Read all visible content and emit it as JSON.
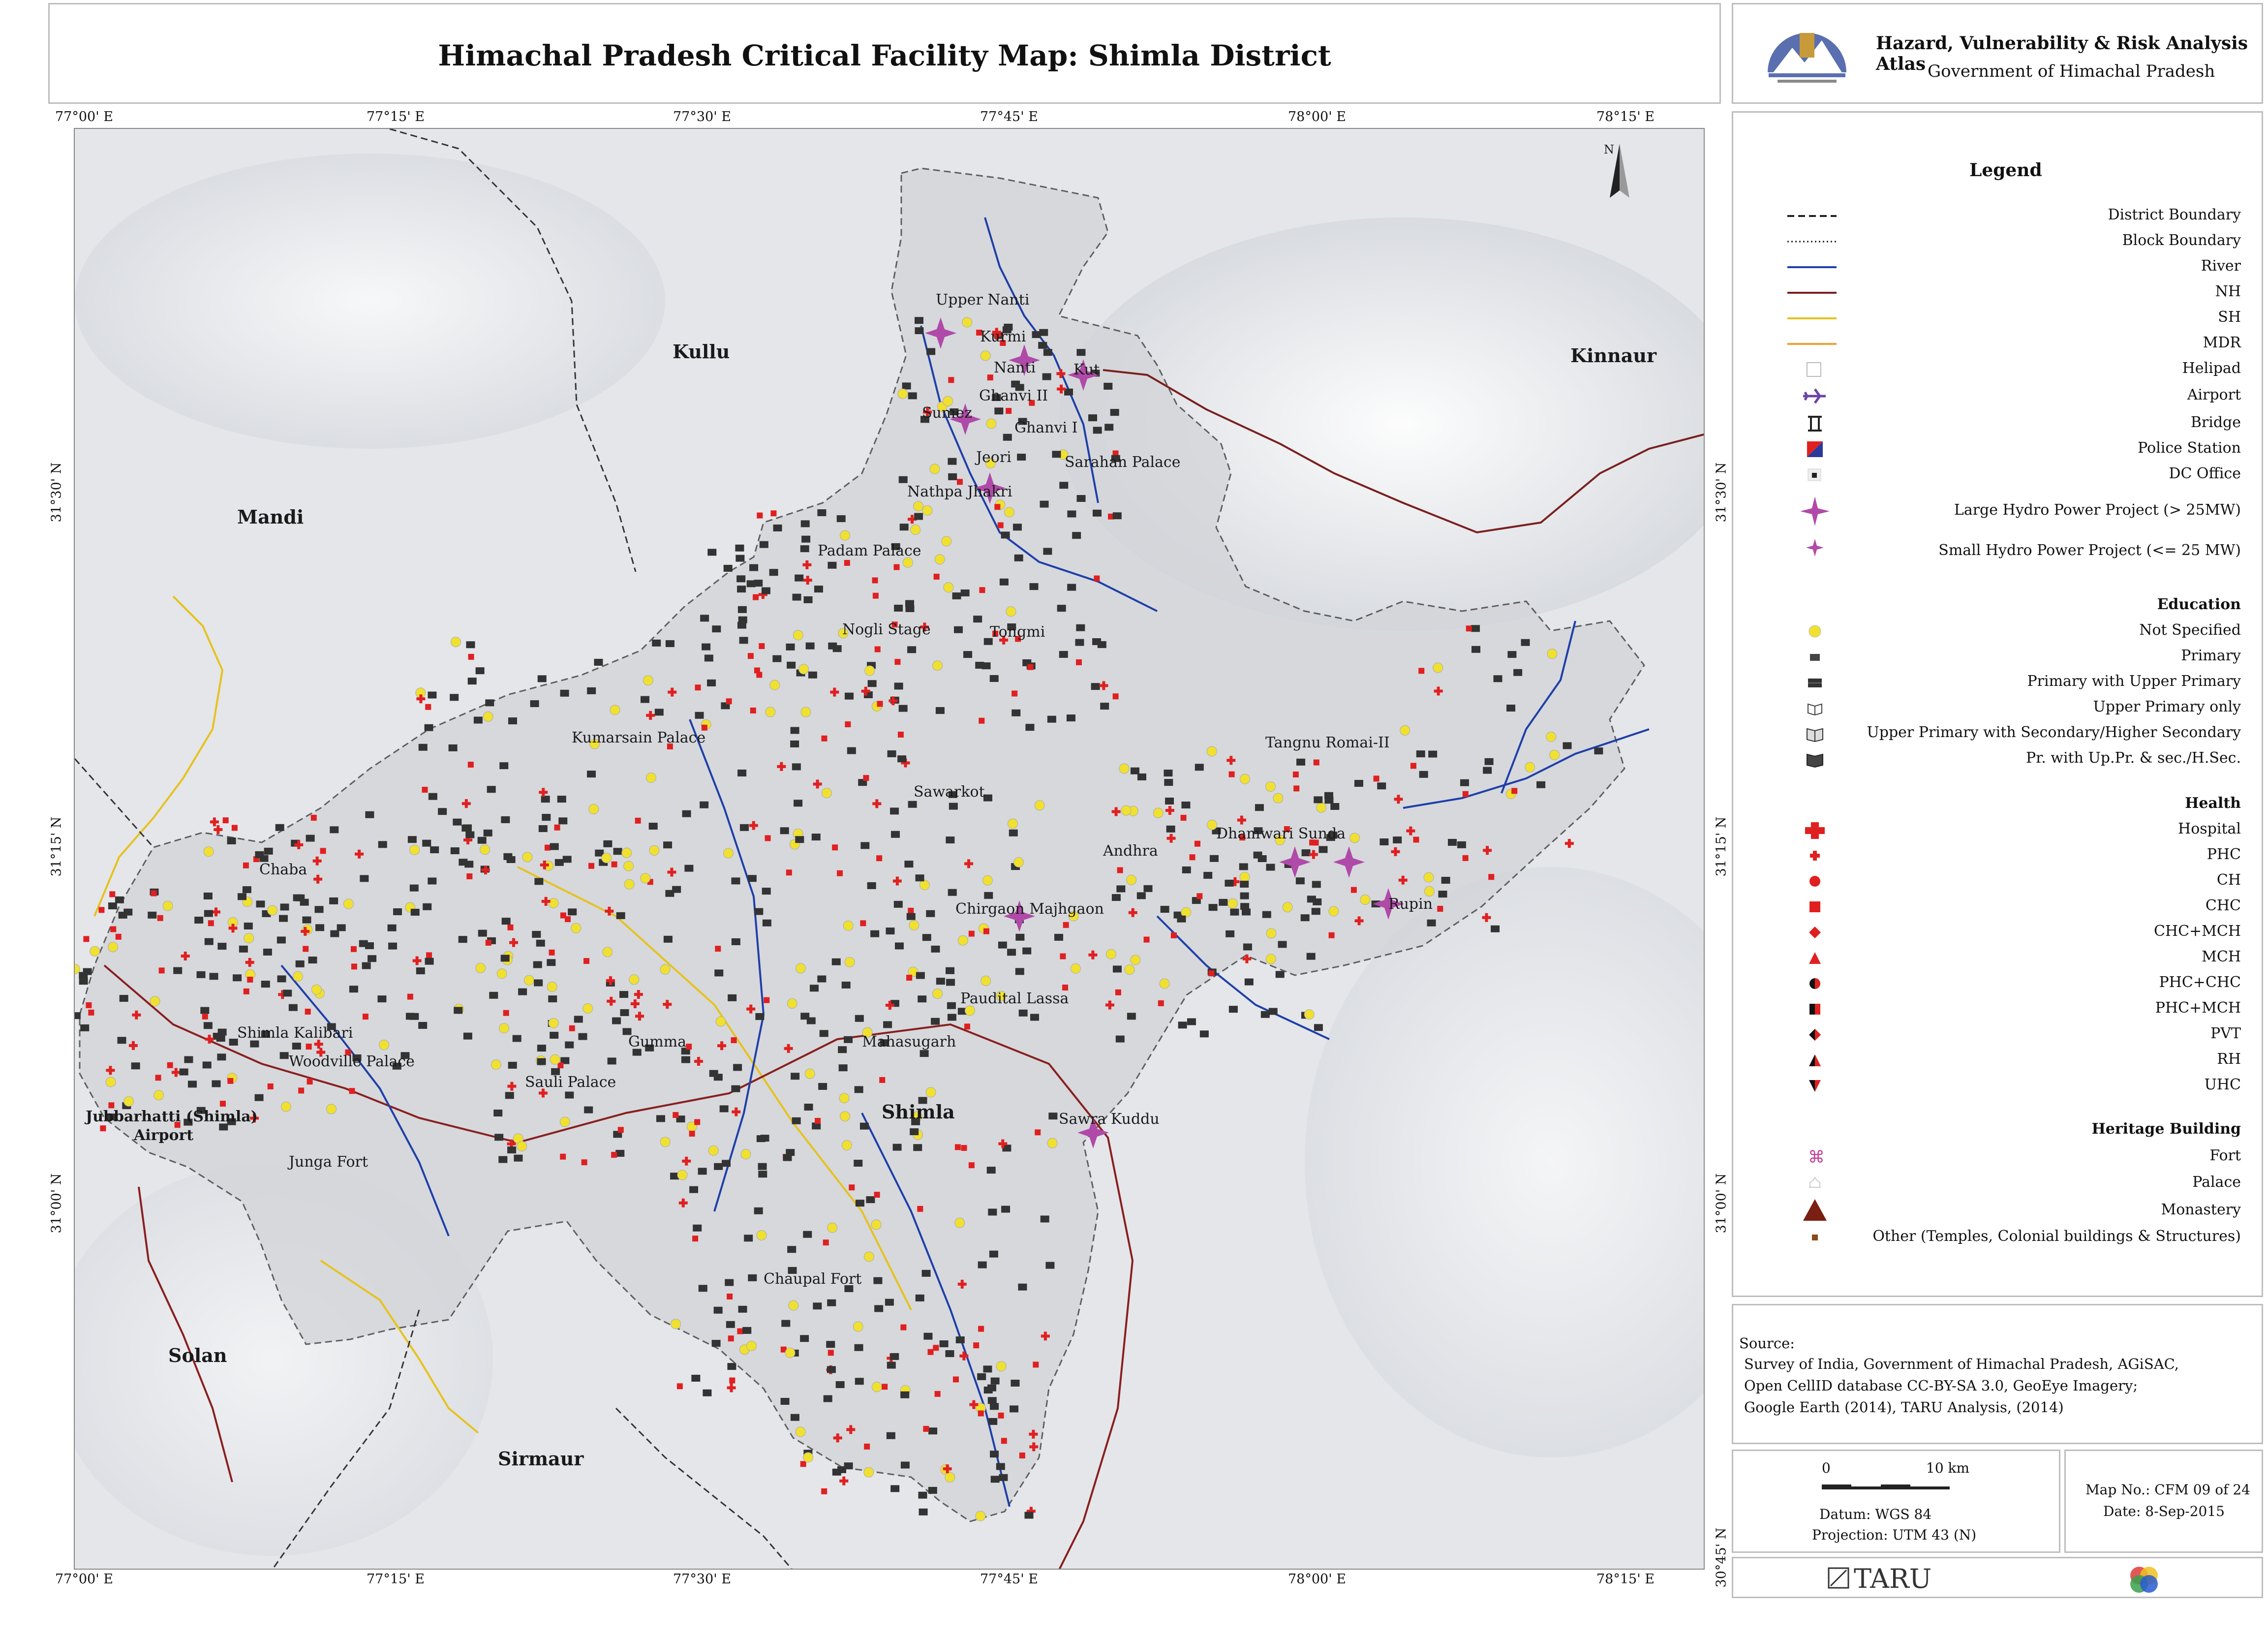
{
  "header": {
    "title": "Himachal Pradesh Critical Facility Map: Shimla District",
    "atlas_title": "Hazard, Vulnerability & Risk Analysis Atlas",
    "atlas_subtitle": "Government of Himachal Pradesh"
  },
  "coords": {
    "top": [
      "77°00' E",
      "77°15' E",
      "77°30' E",
      "77°45' E",
      "78°00' E",
      "78°15' E"
    ],
    "bottom": [
      "77°00' E",
      "77°15' E",
      "77°30' E",
      "77°45' E",
      "78°00' E",
      "78°15' E"
    ],
    "left": [
      "31°30' N",
      "31°15' N",
      "31°00' N"
    ],
    "right": [
      "31°30' N",
      "31°15' N",
      "31°00' N",
      "30°45' N"
    ]
  },
  "map": {
    "north_label": "N",
    "regions": [
      "Kullu",
      "Kinnaur",
      "Mandi",
      "Solan",
      "Sirmaur",
      "Shimla"
    ],
    "places": [
      "Upper Nanti",
      "Kurmi",
      "Nanti",
      "Kut",
      "Ghanvi II",
      "Sumez",
      "Ghanvi I",
      "Jeori",
      "Sarahan Palace",
      "Nathpa Jhakri",
      "Padam Palace",
      "Nogli Stage",
      "Tongmi",
      "Kumarsain Palace",
      "Tangnu Romai-II",
      "Sawarkot",
      "Andhra",
      "Dhamwari Sunda",
      "Chaba",
      "Chirgaon Majhgaon",
      "Rupin",
      "Paudital Lassa",
      "Shimla Kalibari",
      "Woodville Palace",
      "Gumma",
      "Mahasugarh",
      "Sauli Palace",
      "Sawra Kuddu",
      "Jubbarhatti (Shimla)",
      "Airport",
      "Junga Fort",
      "Chaupal Fort"
    ]
  },
  "legend": {
    "title": "Legend",
    "items": [
      {
        "label": "District Boundary",
        "icon": "district-boundary-line"
      },
      {
        "label": "Block Boundary",
        "icon": "block-boundary-line"
      },
      {
        "label": "River",
        "icon": "river-line",
        "color": "#1f3fa8"
      },
      {
        "label": "NH",
        "icon": "nh-line",
        "color": "#7a1f1f"
      },
      {
        "label": "SH",
        "icon": "sh-line",
        "color": "#e6c21e"
      },
      {
        "label": "MDR",
        "icon": "mdr-line",
        "color": "#f0a030"
      },
      {
        "label": "Helipad",
        "icon": "helipad-icon"
      },
      {
        "label": "Airport",
        "icon": "airport-icon",
        "color": "#6b44a8"
      },
      {
        "label": "Bridge",
        "icon": "bridge-icon"
      },
      {
        "label": "Police Station",
        "icon": "police-station-icon"
      },
      {
        "label": "DC Office",
        "icon": "dc-office-icon"
      },
      {
        "label": "Large Hydro Power Project (> 25MW)",
        "icon": "large-hydro-icon",
        "color": "#b04aa8"
      },
      {
        "label": "Small Hydro Power Project (<= 25 MW)",
        "icon": "small-hydro-icon",
        "color": "#b04aa8"
      }
    ],
    "education_heading": "Education",
    "education": [
      {
        "label": "Not Specified",
        "icon": "yellow-dot-icon"
      },
      {
        "label": "Primary",
        "icon": "primary-school-icon"
      },
      {
        "label": "Primary with Upper Primary",
        "icon": "primary-upper-icon"
      },
      {
        "label": "Upper Primary only",
        "icon": "upper-primary-icon"
      },
      {
        "label": "Upper Primary with Secondary/Higher Secondary",
        "icon": "book-open-icon"
      },
      {
        "label": "Pr. with Up.Pr. & sec./H.Sec.",
        "icon": "book-full-icon"
      }
    ],
    "health_heading": "Health",
    "health": [
      {
        "label": "Hospital",
        "icon": "hospital-cross-icon"
      },
      {
        "label": "PHC",
        "icon": "phc-cross-icon"
      },
      {
        "label": "CH",
        "icon": "ch-circle-icon"
      },
      {
        "label": "CHC",
        "icon": "chc-square-icon"
      },
      {
        "label": "CHC+MCH",
        "icon": "chc-mch-diamond-icon"
      },
      {
        "label": "MCH",
        "icon": "mch-triangle-icon"
      },
      {
        "label": "PHC+CHC",
        "icon": "phc-chc-half-circle-icon"
      },
      {
        "label": "PHC+MCH",
        "icon": "phc-mch-half-square-icon"
      },
      {
        "label": "PVT",
        "icon": "pvt-diamond-icon"
      },
      {
        "label": "RH",
        "icon": "rh-triangle-icon"
      },
      {
        "label": "UHC",
        "icon": "uhc-triangle-down-icon"
      }
    ],
    "heritage_heading": "Heritage Building",
    "heritage": [
      {
        "label": "Fort",
        "icon": "fort-icon"
      },
      {
        "label": "Palace",
        "icon": "palace-icon"
      },
      {
        "label": "Monastery",
        "icon": "monastery-icon"
      },
      {
        "label": "Other (Temples, Colonial buildings & Structures)",
        "icon": "other-heritage-icon"
      }
    ]
  },
  "source": {
    "label": "Source:",
    "lines": [
      "Survey of India, Government of Himachal Pradesh, AGiSAC,",
      "Open CellID database CC-BY-SA 3.0, GeoEye Imagery;",
      "Google Earth (2014), TARU Analysis, (2014)"
    ]
  },
  "scale": {
    "zero": "0",
    "ten": "10 km",
    "datum": "Datum: WGS 84",
    "projection": "Projection: UTM 43 (N)"
  },
  "map_info": {
    "map_no": "Map No.: CFM 09 of 24",
    "date": "Date: 8-Sep-2015"
  },
  "logo": {
    "taru": "TARU"
  }
}
